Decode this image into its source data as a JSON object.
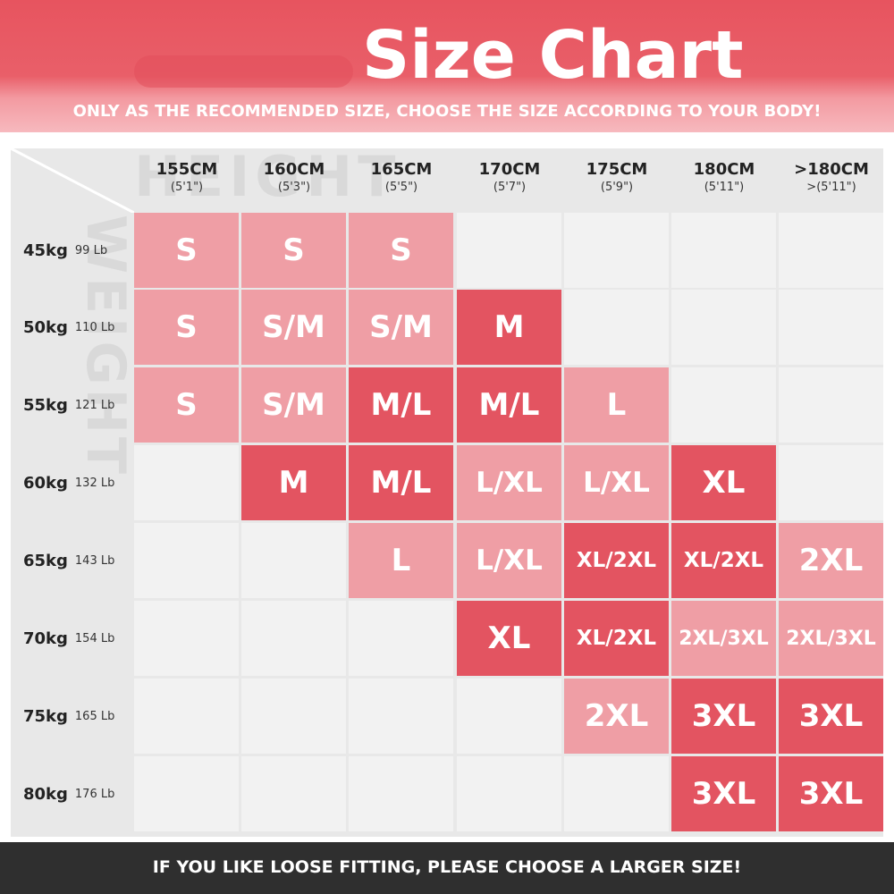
{
  "header": {
    "title": "Size Chart",
    "subtitle": "ONLY AS THE RECOMMENDED SIZE, CHOOSE THE SIZE ACCORDING TO YOUR BODY!"
  },
  "watermarks": {
    "height": "HEIGHT",
    "weight": "WEIGHT"
  },
  "heights": [
    {
      "cm": "155CM",
      "ft": "(5'1\")"
    },
    {
      "cm": "160CM",
      "ft": "(5'3\")"
    },
    {
      "cm": "165CM",
      "ft": "(5'5\")"
    },
    {
      "cm": "170CM",
      "ft": "(5'7\")"
    },
    {
      "cm": "175CM",
      "ft": "(5'9\")"
    },
    {
      "cm": "180CM",
      "ft": "(5'11\")"
    },
    {
      "cm": ">180CM",
      "ft": ">(5'11\")"
    }
  ],
  "weights": [
    {
      "kg": "45kg",
      "lb": "99 Lb"
    },
    {
      "kg": "50kg",
      "lb": "110 Lb"
    },
    {
      "kg": "55kg",
      "lb": "121 Lb"
    },
    {
      "kg": "60kg",
      "lb": "132 Lb"
    },
    {
      "kg": "65kg",
      "lb": "143 Lb"
    },
    {
      "kg": "70kg",
      "lb": "154 Lb"
    },
    {
      "kg": "75kg",
      "lb": "165 Lb"
    },
    {
      "kg": "80kg",
      "lb": "176 Lb"
    }
  ],
  "sizes": [
    [
      "S",
      "S",
      "S",
      "",
      "",
      "",
      ""
    ],
    [
      "S",
      "S/M",
      "S/M",
      "M",
      "",
      "",
      ""
    ],
    [
      "S",
      "S/M",
      "M/L",
      "M/L",
      "L",
      "",
      ""
    ],
    [
      "",
      "M",
      "M/L",
      "L/XL",
      "L/XL",
      "XL",
      ""
    ],
    [
      "",
      "",
      "L",
      "L/XL",
      "XL/2XL",
      "XL/2XL",
      "2XL"
    ],
    [
      "",
      "",
      "",
      "XL",
      "XL/2XL",
      "2XL/3XL",
      "2XL/3XL"
    ],
    [
      "",
      "",
      "",
      "",
      "2XL",
      "3XL",
      "3XL"
    ],
    [
      "",
      "",
      "",
      "",
      "",
      "3XL",
      "3XL"
    ]
  ],
  "shades": [
    [
      "light",
      "light",
      "light",
      "",
      "",
      "",
      ""
    ],
    [
      "light",
      "light",
      "light",
      "dark",
      "",
      "",
      ""
    ],
    [
      "light",
      "light",
      "dark",
      "dark",
      "light",
      "",
      ""
    ],
    [
      "",
      "dark",
      "dark",
      "light",
      "light",
      "dark",
      ""
    ],
    [
      "",
      "",
      "light",
      "light",
      "dark",
      "dark",
      "light"
    ],
    [
      "",
      "",
      "",
      "dark",
      "dark",
      "light",
      "light"
    ],
    [
      "",
      "",
      "",
      "",
      "light",
      "dark",
      "dark"
    ],
    [
      "",
      "",
      "",
      "",
      "",
      "dark",
      "dark"
    ]
  ],
  "colors": {
    "light": "#ef9ea5",
    "dark": "#e35461",
    "empty": "#e8e8e8",
    "gridline": "#ffffff"
  },
  "footer": {
    "text": "IF YOU LIKE LOOSE FITTING, PLEASE CHOOSE A LARGER SIZE!"
  }
}
